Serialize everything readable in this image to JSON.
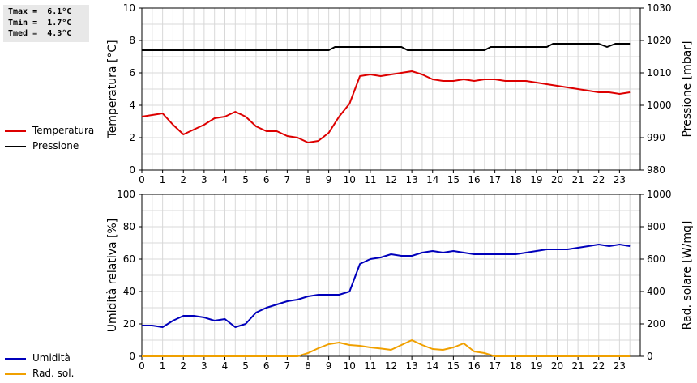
{
  "stats": [
    {
      "label": "Tmax",
      "value": "6.1°C"
    },
    {
      "label": "Tmin",
      "value": "1.7°C"
    },
    {
      "label": "Tmed",
      "value": "4.3°C"
    }
  ],
  "colors": {
    "temperature": "#dd0000",
    "pressure": "#000000",
    "humidity": "#0000bb",
    "radiation": "#f0a000",
    "grid": "#d8d8d8"
  },
  "chart_data": [
    {
      "type": "line",
      "x_ticks": [
        "0",
        "1",
        "2",
        "3",
        "4",
        "5",
        "6",
        "7",
        "8",
        "9",
        "10",
        "11",
        "12",
        "13",
        "14",
        "15",
        "16",
        "17",
        "18",
        "19",
        "20",
        "21",
        "22",
        "23"
      ],
      "xlim": [
        0,
        24
      ],
      "ylabel": "Temperatura [°C]",
      "ylim": [
        0,
        10
      ],
      "y_ticks": [
        "0",
        "2",
        "4",
        "6",
        "8",
        "10"
      ],
      "y2label": "Pressione [mbar]",
      "y2lim": [
        980,
        1030
      ],
      "y2_ticks": [
        "980",
        "990",
        "1000",
        "1010",
        "1020",
        "1030"
      ],
      "grid": true,
      "legend": "left",
      "series": [
        {
          "name": "Temperatura",
          "axis": "left",
          "x": [
            0,
            0.5,
            1,
            1.5,
            2,
            2.5,
            3,
            3.5,
            4,
            4.5,
            5,
            5.5,
            6,
            6.5,
            7,
            7.5,
            8,
            8.5,
            9,
            9.5,
            10,
            10.5,
            11,
            11.5,
            12,
            12.5,
            13,
            13.5,
            14,
            14.5,
            15,
            15.5,
            16,
            16.5,
            17,
            17.5,
            18,
            18.5,
            19,
            19.5,
            20,
            20.5,
            21,
            21.5,
            22,
            22.5,
            23,
            23.5
          ],
          "values": [
            3.3,
            3.4,
            3.5,
            2.8,
            2.2,
            2.5,
            2.8,
            3.2,
            3.3,
            3.6,
            3.3,
            2.7,
            2.4,
            2.4,
            2.1,
            2.0,
            1.7,
            1.8,
            2.3,
            3.3,
            4.1,
            5.8,
            5.9,
            5.8,
            5.9,
            6.0,
            6.1,
            5.9,
            5.6,
            5.5,
            5.5,
            5.6,
            5.5,
            5.6,
            5.6,
            5.5,
            5.5,
            5.5,
            5.4,
            5.3,
            5.2,
            5.1,
            5.0,
            4.9,
            4.8,
            4.8,
            4.7,
            4.8
          ]
        },
        {
          "name": "Pressione",
          "axis": "right",
          "x": [
            0,
            9,
            9.3,
            12.5,
            12.8,
            16.5,
            16.8,
            19.5,
            19.8,
            22,
            22.4,
            22.8,
            23.5
          ],
          "values": [
            1017,
            1017,
            1018,
            1018,
            1017,
            1017,
            1018,
            1018,
            1019,
            1019,
            1018,
            1019,
            1019
          ]
        }
      ]
    },
    {
      "type": "line",
      "x_ticks": [
        "0",
        "1",
        "2",
        "3",
        "4",
        "5",
        "6",
        "7",
        "8",
        "9",
        "10",
        "11",
        "12",
        "13",
        "14",
        "15",
        "16",
        "17",
        "18",
        "19",
        "20",
        "21",
        "22",
        "23"
      ],
      "xlim": [
        0,
        24
      ],
      "ylabel": "Umidità relativa [%]",
      "ylim": [
        0,
        100
      ],
      "y_ticks": [
        "0",
        "20",
        "40",
        "60",
        "80",
        "100"
      ],
      "y2label": "Rad. solare [W/mq]",
      "y2lim": [
        0,
        1000
      ],
      "y2_ticks": [
        "0",
        "200",
        "400",
        "600",
        "800",
        "1000"
      ],
      "grid": true,
      "legend": "left",
      "series": [
        {
          "name": "Umidità",
          "axis": "left",
          "x": [
            0,
            0.5,
            1,
            1.5,
            2,
            2.5,
            3,
            3.5,
            4,
            4.5,
            5,
            5.5,
            6,
            6.5,
            7,
            7.5,
            8,
            8.5,
            9,
            9.5,
            10,
            10.5,
            11,
            11.5,
            12,
            12.5,
            13,
            13.5,
            14,
            14.5,
            15,
            15.5,
            16,
            16.5,
            17,
            17.5,
            18,
            18.5,
            19,
            19.5,
            20,
            20.5,
            21,
            21.5,
            22,
            22.5,
            23,
            23.5
          ],
          "values": [
            19,
            19,
            18,
            22,
            25,
            25,
            24,
            22,
            23,
            18,
            20,
            27,
            30,
            32,
            34,
            35,
            37,
            38,
            38,
            38,
            40,
            57,
            60,
            61,
            63,
            62,
            62,
            64,
            65,
            64,
            65,
            64,
            63,
            63,
            63,
            63,
            63,
            64,
            65,
            66,
            66,
            66,
            67,
            68,
            69,
            68,
            69,
            68
          ]
        },
        {
          "name": "Rad. sol.",
          "axis": "right",
          "x": [
            0,
            7.5,
            8,
            8.5,
            9,
            9.5,
            10,
            10.5,
            11,
            11.5,
            12,
            12.5,
            13,
            13.5,
            14,
            14.5,
            15,
            15.5,
            16,
            16.5,
            17,
            23.5
          ],
          "values": [
            0,
            0,
            20,
            50,
            75,
            85,
            70,
            65,
            55,
            48,
            40,
            70,
            100,
            70,
            45,
            40,
            55,
            80,
            30,
            20,
            0,
            0
          ]
        }
      ]
    }
  ]
}
